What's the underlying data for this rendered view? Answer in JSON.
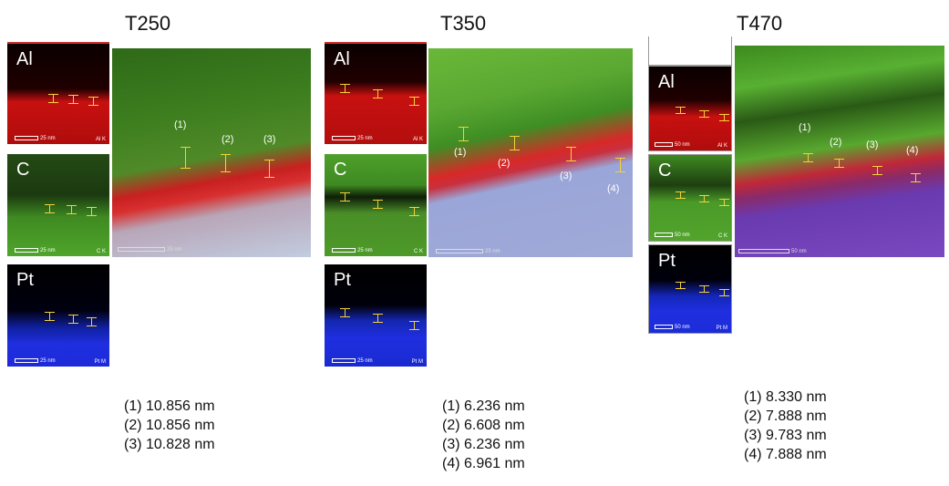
{
  "panels": [
    {
      "title": "T250",
      "maps": [
        {
          "label": "Al",
          "scale": "25 nm",
          "line": "Al K"
        },
        {
          "label": "C",
          "scale": "25 nm",
          "line": "C K"
        },
        {
          "label": "Pt",
          "scale": "25 nm",
          "line": "Pt M"
        }
      ],
      "overlay": {
        "scale": "25 nm",
        "markers": [
          "(1)",
          "(2)",
          "(3)"
        ]
      },
      "measurements": [
        "(1) 10.856 nm",
        "(2) 10.856 nm",
        "(3) 10.828 nm"
      ]
    },
    {
      "title": "T350",
      "maps": [
        {
          "label": "Al",
          "scale": "25 nm",
          "line": "Al K"
        },
        {
          "label": "C",
          "scale": "25 nm",
          "line": "C K"
        },
        {
          "label": "Pt",
          "scale": "25 nm",
          "line": "Pt M"
        }
      ],
      "overlay": {
        "scale": "25 nm",
        "markers": [
          "(1)",
          "(2)",
          "(3)",
          "(4)"
        ]
      },
      "measurements": [
        "(1) 6.236 nm",
        "(2) 6.608 nm",
        "(3) 6.236 nm",
        "(4) 6.961 nm"
      ]
    },
    {
      "title": "T470",
      "maps": [
        {
          "label": "Al",
          "scale": "50 nm",
          "line": "Al K"
        },
        {
          "label": "C",
          "scale": "50 nm",
          "line": "C K"
        },
        {
          "label": "Pt",
          "scale": "50 nm",
          "line": "Pt M"
        }
      ],
      "overlay": {
        "scale": "50 nm",
        "markers": [
          "(1)",
          "(2)",
          "(3)",
          "(4)"
        ]
      },
      "measurements": [
        "(1) 8.330 nm",
        "(2) 7.888 nm",
        "(3) 9.783 nm",
        "(4) 7.888 nm"
      ]
    }
  ],
  "colors": {
    "al": "#d81414",
    "c": "#4fb52a",
    "pt": "#1f2fe0",
    "overlay_green": "#3e8a1d",
    "overlay_substrate": "#aab4e0",
    "marker": "#f4d23a"
  }
}
